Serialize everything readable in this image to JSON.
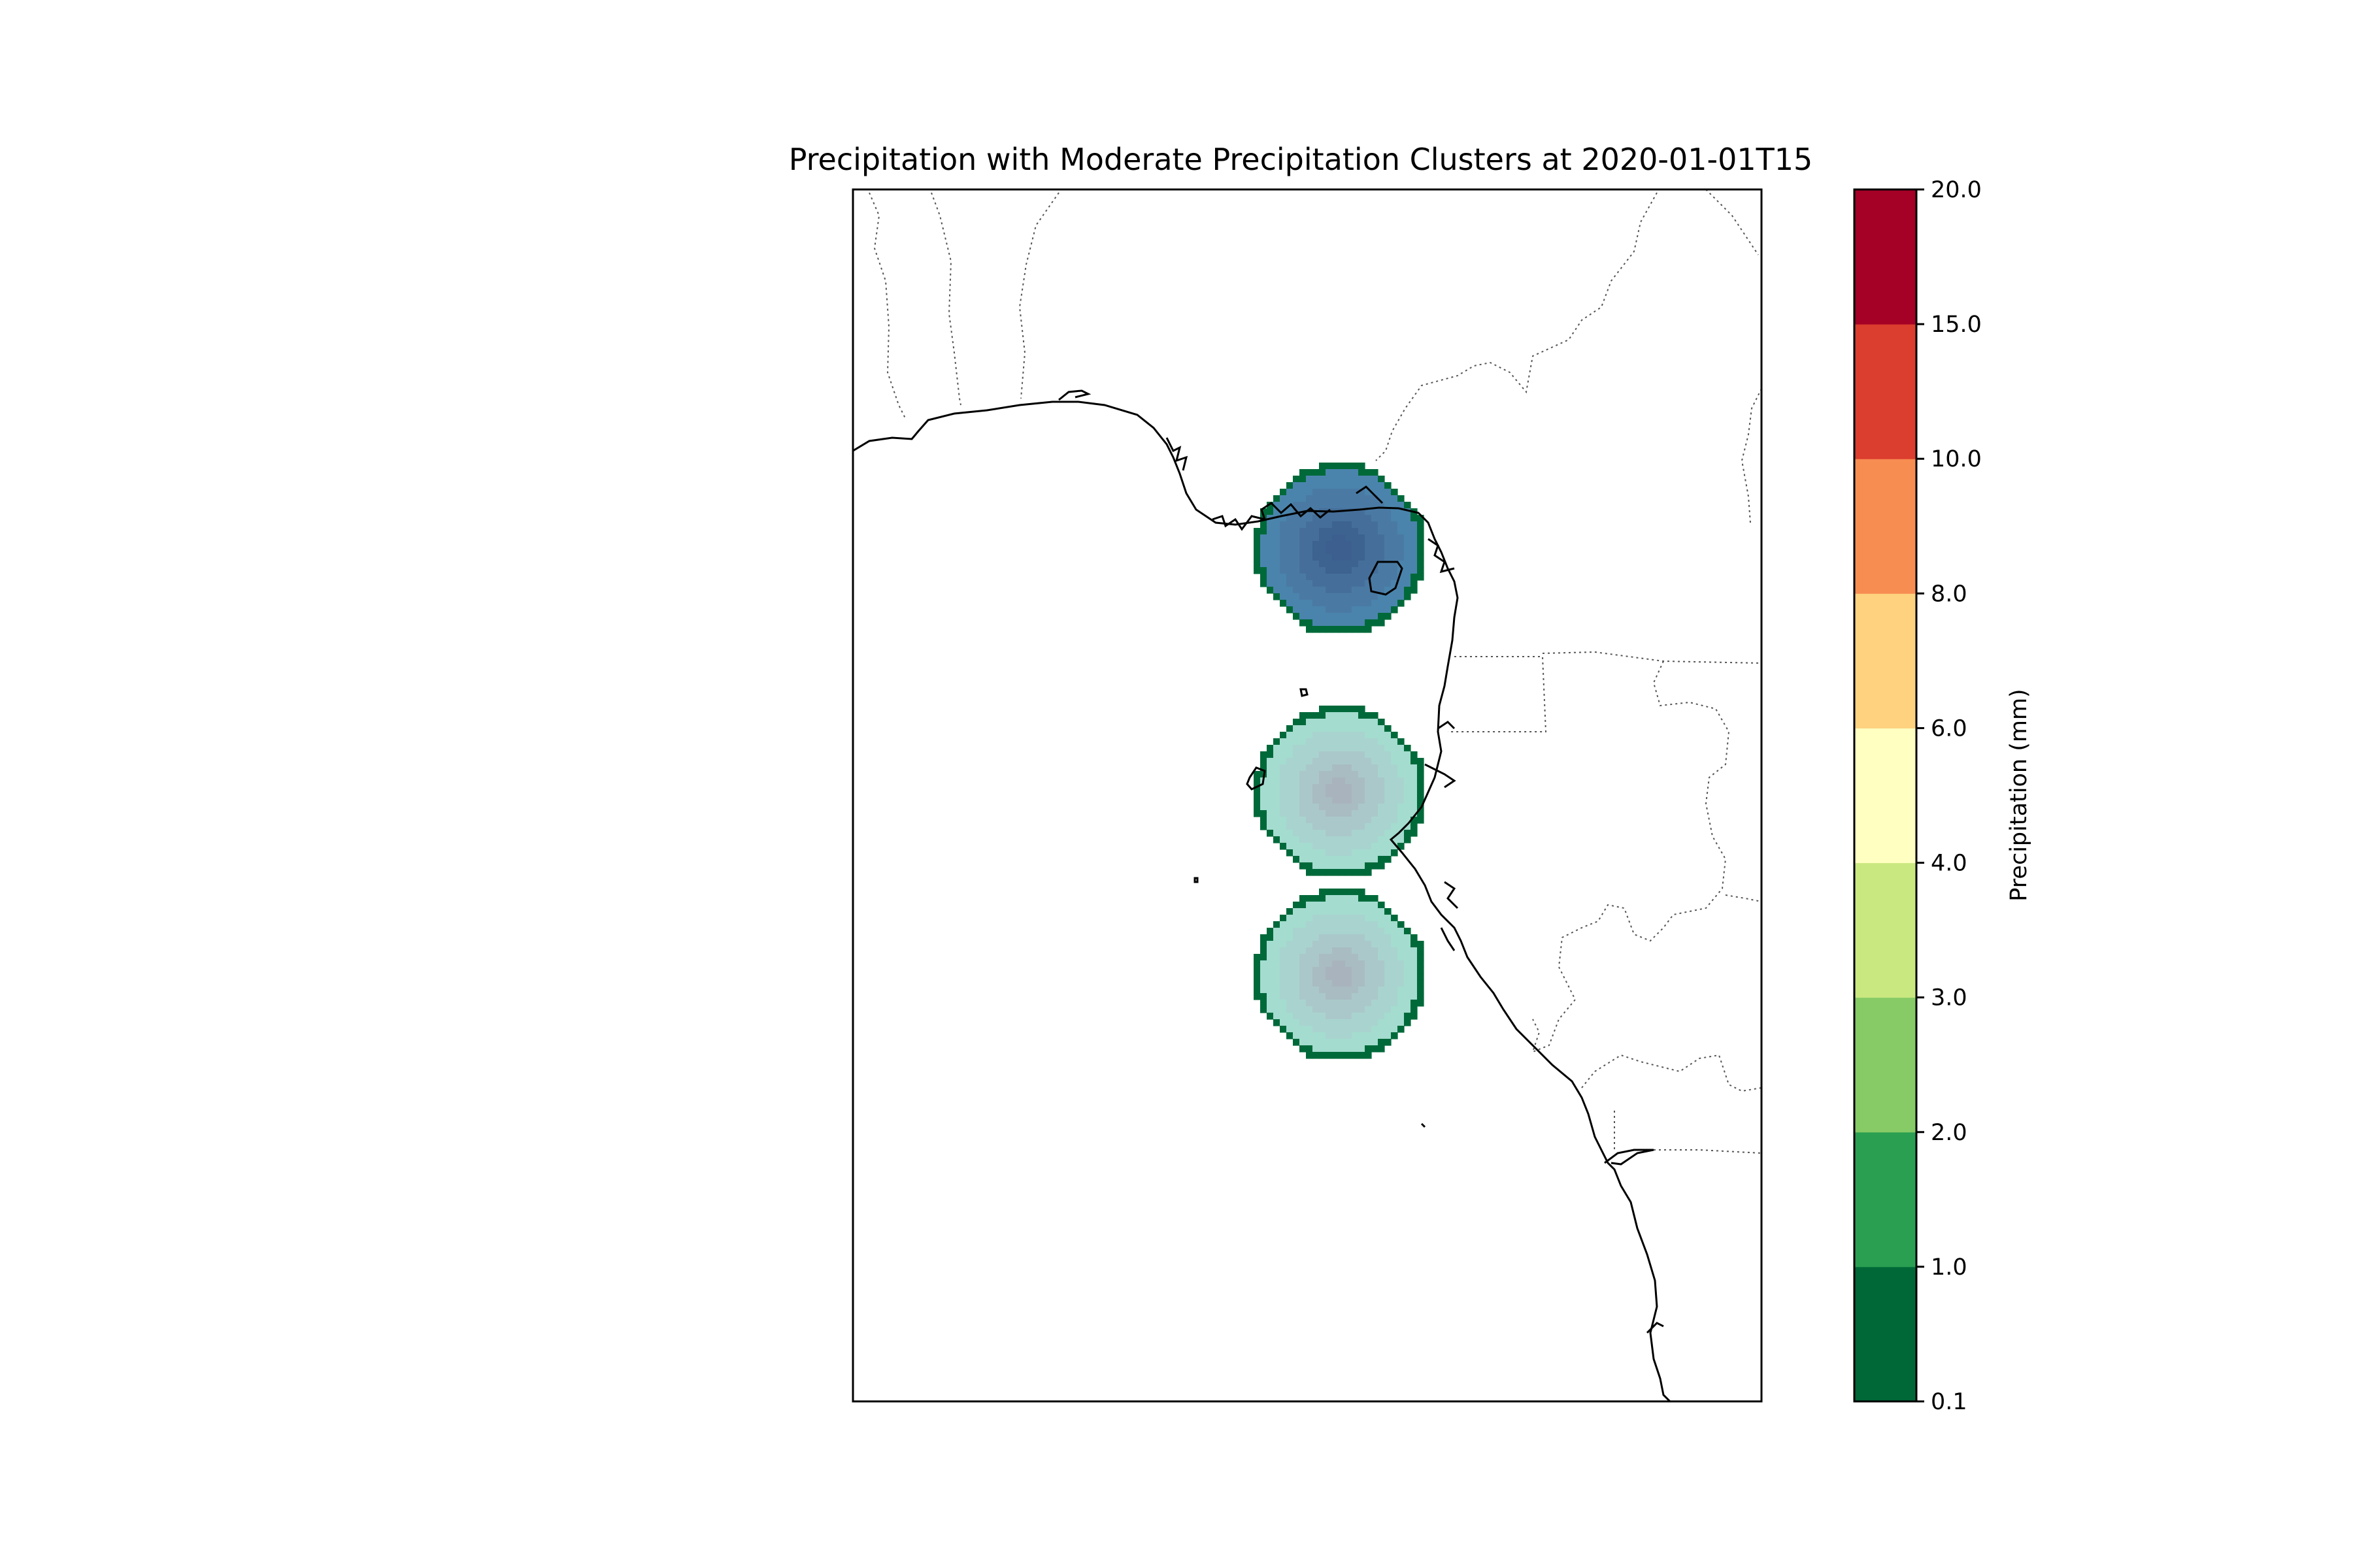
{
  "title": "Precipitation with Moderate Precipitation Clusters at 2020-01-01T15",
  "colorbar": {
    "label": "Precipitation (mm)",
    "levels": [
      0.1,
      1.0,
      2.0,
      3.0,
      4.0,
      6.0,
      8.0,
      10.0,
      15.0,
      20.0
    ],
    "tick_labels": [
      "0.1",
      "1.0",
      "2.0",
      "3.0",
      "4.0",
      "6.0",
      "8.0",
      "10.0",
      "15.0",
      "20.0"
    ],
    "colors": [
      "#006837",
      "#2a9f52",
      "#86cb66",
      "#cae880",
      "#feffc0",
      "#fed27f",
      "#f88d52",
      "#db3d2e",
      "#a50026"
    ]
  },
  "clusters": [
    {
      "name": "north",
      "peak_color": "#3d5f90",
      "rim_color": "#00693a",
      "shades": [
        "#4a84ac",
        "#4a7aa4",
        "#456f9a",
        "#3d6391"
      ]
    },
    {
      "name": "middle",
      "peak_color": "#a9b3bd",
      "rim_color": "#00693a",
      "shades": [
        "#a4dccf",
        "#a9d3cf",
        "#aac8c9",
        "#a9bcc2"
      ]
    },
    {
      "name": "south",
      "peak_color": "#a9b3bd",
      "rim_color": "#00693a",
      "shades": [
        "#a4dccf",
        "#a9d3cf",
        "#aac8c9",
        "#a9bcc2"
      ]
    }
  ],
  "chart_data": {
    "type": "heatmap",
    "title": "Precipitation with Moderate Precipitation Clusters at 2020-01-01T15",
    "colorbar_label": "Precipitation (mm)",
    "colorbar_levels": [
      0.1,
      1.0,
      2.0,
      3.0,
      4.0,
      6.0,
      8.0,
      10.0,
      15.0,
      20.0
    ],
    "features": [
      "coastline",
      "country borders"
    ],
    "clusters": 3
  }
}
